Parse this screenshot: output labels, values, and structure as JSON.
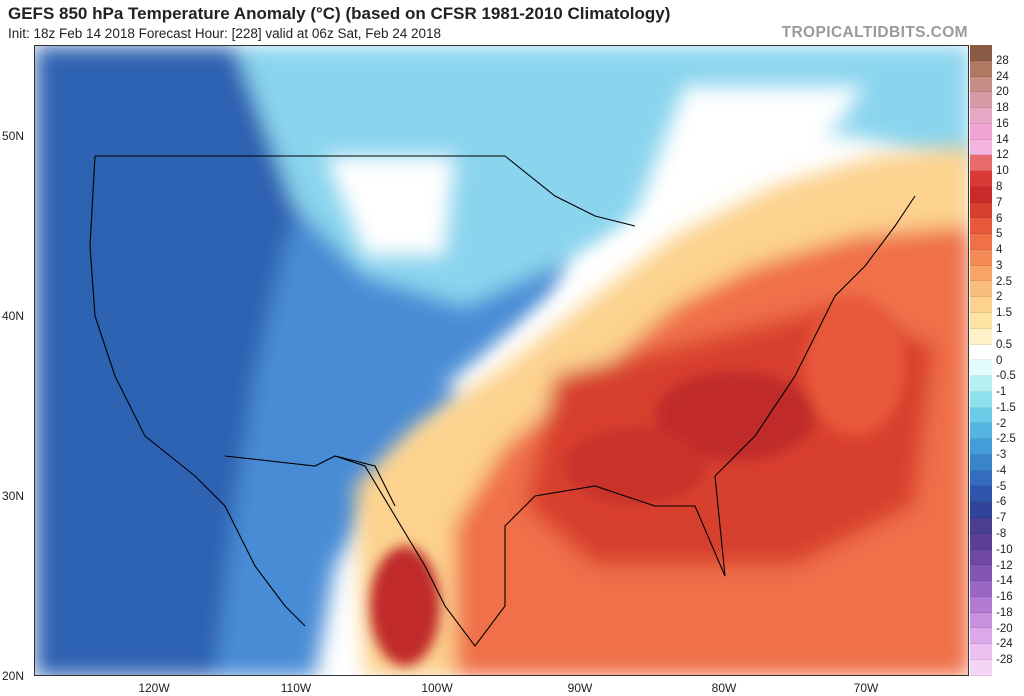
{
  "header": {
    "title": "GEFS 850 hPa Temperature Anomaly (°C) (based on CFSR 1981-2010 Climatology)",
    "subtitle": "Init: 18z Feb 14 2018   Forecast Hour: [228]   valid at 06z Sat, Feb 24 2018",
    "brand": "TROPICALTIDBITS.COM"
  },
  "axes": {
    "lat_labels": [
      "50N",
      "40N",
      "30N",
      "20N"
    ],
    "lon_labels": [
      "120W",
      "110W",
      "100W",
      "90W",
      "80W",
      "70W"
    ]
  },
  "colorbar": {
    "labels": [
      "28",
      "24",
      "20",
      "18",
      "16",
      "14",
      "12",
      "10",
      "8",
      "7",
      "6",
      "5",
      "4",
      "3",
      "2.5",
      "2",
      "1.5",
      "1",
      "0.5",
      "0",
      "-0.5",
      "-1",
      "-1.5",
      "-2",
      "-2.5",
      "-3",
      "-4",
      "-5",
      "-6",
      "-7",
      "-8",
      "-10",
      "-12",
      "-14",
      "-16",
      "-18",
      "-20",
      "-24",
      "-28"
    ],
    "colors": [
      "#8a5a44",
      "#b07862",
      "#c48e86",
      "#d69aa6",
      "#e6a6c4",
      "#f0a4d4",
      "#f4b4e0",
      "#e86a6a",
      "#d83a36",
      "#c82a2a",
      "#d8402e",
      "#e8583a",
      "#f07048",
      "#f48a56",
      "#f8a468",
      "#fabe7c",
      "#fcd28e",
      "#fde4a4",
      "#fff2c8",
      "#ffffff",
      "#e2fbfb",
      "#b8f0f2",
      "#8ee2ee",
      "#6ccce8",
      "#54b4e2",
      "#449cd8",
      "#3a84cc",
      "#346cbe",
      "#2e56ac",
      "#30449a",
      "#4a3f92",
      "#5c3e98",
      "#6e48a4",
      "#8456b4",
      "#9a66c4",
      "#b27ad2",
      "#c890de",
      "#dca8e8",
      "#ecc0f0",
      "#f6d4f4"
    ]
  },
  "map": {
    "colors": {
      "deep_cold": "#2e62b2",
      "cold": "#4a8cd6",
      "cool": "#8ad4ee",
      "neutral": "#ffffff",
      "warm": "#fcd28e",
      "hot": "#f07048",
      "very_hot": "#d8402e",
      "extreme": "#c02a2a"
    }
  }
}
